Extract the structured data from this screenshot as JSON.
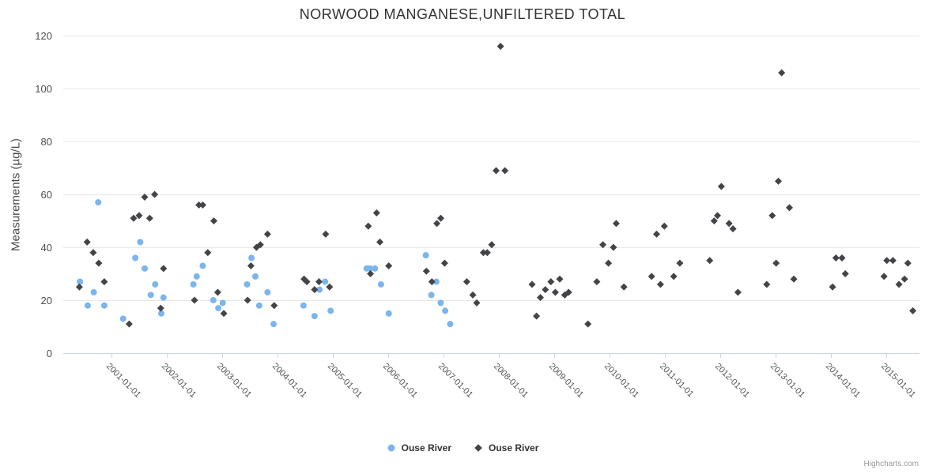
{
  "title": "NORWOOD MANGANESE,UNFILTERED TOTAL",
  "credits": "Highcharts.com",
  "legend": {
    "items": [
      {
        "label": "Ouse River",
        "marker": "circle"
      },
      {
        "label": "Ouse River",
        "marker": "diamond"
      }
    ]
  },
  "chart_data": {
    "type": "scatter",
    "title": "NORWOOD MANGANESE,UNFILTERED TOTAL",
    "xlabel": "",
    "ylabel": "Measurements (µg/L)",
    "ylim": [
      0,
      120
    ],
    "yticks": [
      0,
      20,
      40,
      60,
      80,
      100,
      120
    ],
    "xtick_labels": [
      "2001-01-01",
      "2002-01-01",
      "2003-01-01",
      "2004-01-01",
      "2005-01-01",
      "2006-01-01",
      "2007-01-01",
      "2008-01-01",
      "2009-01-01",
      "2010-01-01",
      "2011-01-01",
      "2012-01-01",
      "2013-01-01",
      "2014-01-01",
      "2015-01-01"
    ],
    "xlim_years": [
      2000.13,
      2015.62
    ],
    "grid": "horizontal",
    "legend_position": "bottom-center",
    "colors": {
      "series1": "#7cb5ec",
      "series2": "#434348",
      "gridline": "#e6e6e6",
      "axis_line": "#ccd6eb"
    },
    "series": [
      {
        "name": "Ouse River",
        "marker": "circle",
        "color": "#7cb5ec",
        "points": [
          [
            2000.43,
            27
          ],
          [
            2000.57,
            18
          ],
          [
            2000.68,
            23
          ],
          [
            2000.76,
            57
          ],
          [
            2000.87,
            18
          ],
          [
            2001.21,
            13
          ],
          [
            2001.43,
            36
          ],
          [
            2001.52,
            42
          ],
          [
            2001.6,
            32
          ],
          [
            2001.71,
            22
          ],
          [
            2001.79,
            26
          ],
          [
            2001.9,
            15
          ],
          [
            2001.94,
            21
          ],
          [
            2002.48,
            26
          ],
          [
            2002.54,
            29
          ],
          [
            2002.65,
            33
          ],
          [
            2002.84,
            20
          ],
          [
            2002.93,
            17
          ],
          [
            2003.01,
            19
          ],
          [
            2003.45,
            26
          ],
          [
            2003.53,
            36
          ],
          [
            2003.6,
            29
          ],
          [
            2003.67,
            18
          ],
          [
            2003.82,
            23
          ],
          [
            2003.93,
            11
          ],
          [
            2004.47,
            18
          ],
          [
            2004.67,
            14
          ],
          [
            2004.76,
            24
          ],
          [
            2004.86,
            27
          ],
          [
            2004.96,
            16
          ],
          [
            2005.61,
            32
          ],
          [
            2005.67,
            32
          ],
          [
            2005.76,
            32
          ],
          [
            2005.87,
            26
          ],
          [
            2006.01,
            15
          ],
          [
            2006.68,
            37
          ],
          [
            2006.78,
            22
          ],
          [
            2006.87,
            27
          ],
          [
            2006.95,
            19
          ],
          [
            2007.03,
            16
          ],
          [
            2007.12,
            11
          ]
        ]
      },
      {
        "name": "Ouse River",
        "marker": "diamond",
        "color": "#434348",
        "points": [
          [
            2000.42,
            25
          ],
          [
            2000.56,
            42
          ],
          [
            2000.67,
            38
          ],
          [
            2000.77,
            34
          ],
          [
            2000.87,
            27
          ],
          [
            2001.32,
            11
          ],
          [
            2001.4,
            51
          ],
          [
            2001.5,
            52
          ],
          [
            2001.6,
            59
          ],
          [
            2001.69,
            51
          ],
          [
            2001.78,
            60
          ],
          [
            2001.89,
            17
          ],
          [
            2001.94,
            32
          ],
          [
            2002.5,
            20
          ],
          [
            2002.58,
            56
          ],
          [
            2002.65,
            56
          ],
          [
            2002.74,
            38
          ],
          [
            2002.85,
            50
          ],
          [
            2002.92,
            23
          ],
          [
            2003.03,
            15
          ],
          [
            2003.46,
            20
          ],
          [
            2003.52,
            33
          ],
          [
            2003.62,
            40
          ],
          [
            2003.69,
            41
          ],
          [
            2003.82,
            45
          ],
          [
            2003.94,
            18
          ],
          [
            2004.48,
            28
          ],
          [
            2004.53,
            27
          ],
          [
            2004.67,
            24
          ],
          [
            2004.75,
            27
          ],
          [
            2004.87,
            45
          ],
          [
            2004.94,
            25
          ],
          [
            2005.64,
            48
          ],
          [
            2005.68,
            30
          ],
          [
            2005.79,
            53
          ],
          [
            2005.85,
            42
          ],
          [
            2006.01,
            33
          ],
          [
            2006.69,
            31
          ],
          [
            2006.79,
            27
          ],
          [
            2006.88,
            49
          ],
          [
            2006.95,
            51
          ],
          [
            2007.02,
            34
          ],
          [
            2007.42,
            27
          ],
          [
            2007.53,
            22
          ],
          [
            2007.6,
            19
          ],
          [
            2007.72,
            38
          ],
          [
            2007.79,
            38
          ],
          [
            2007.87,
            41
          ],
          [
            2007.95,
            69
          ],
          [
            2008.03,
            116
          ],
          [
            2008.11,
            69
          ],
          [
            2008.6,
            26
          ],
          [
            2008.68,
            14
          ],
          [
            2008.75,
            21
          ],
          [
            2008.84,
            24
          ],
          [
            2008.94,
            27
          ],
          [
            2009.02,
            23
          ],
          [
            2009.1,
            28
          ],
          [
            2009.19,
            22
          ],
          [
            2009.26,
            23
          ],
          [
            2009.61,
            11
          ],
          [
            2009.77,
            27
          ],
          [
            2009.88,
            41
          ],
          [
            2009.98,
            34
          ],
          [
            2010.07,
            40
          ],
          [
            2010.12,
            49
          ],
          [
            2010.26,
            25
          ],
          [
            2010.76,
            29
          ],
          [
            2010.85,
            45
          ],
          [
            2010.92,
            26
          ],
          [
            2010.99,
            48
          ],
          [
            2011.16,
            29
          ],
          [
            2011.27,
            34
          ],
          [
            2011.81,
            35
          ],
          [
            2011.89,
            50
          ],
          [
            2011.95,
            52
          ],
          [
            2012.02,
            63
          ],
          [
            2012.16,
            49
          ],
          [
            2012.23,
            47
          ],
          [
            2012.32,
            23
          ],
          [
            2012.84,
            26
          ],
          [
            2012.94,
            52
          ],
          [
            2013.01,
            34
          ],
          [
            2013.05,
            65
          ],
          [
            2013.11,
            106
          ],
          [
            2013.25,
            55
          ],
          [
            2013.33,
            28
          ],
          [
            2014.03,
            25
          ],
          [
            2014.09,
            36
          ],
          [
            2014.2,
            36
          ],
          [
            2014.26,
            30
          ],
          [
            2014.96,
            29
          ],
          [
            2015.01,
            35
          ],
          [
            2015.12,
            35
          ],
          [
            2015.23,
            26
          ],
          [
            2015.33,
            28
          ],
          [
            2015.39,
            34
          ],
          [
            2015.48,
            16
          ]
        ]
      }
    ]
  }
}
